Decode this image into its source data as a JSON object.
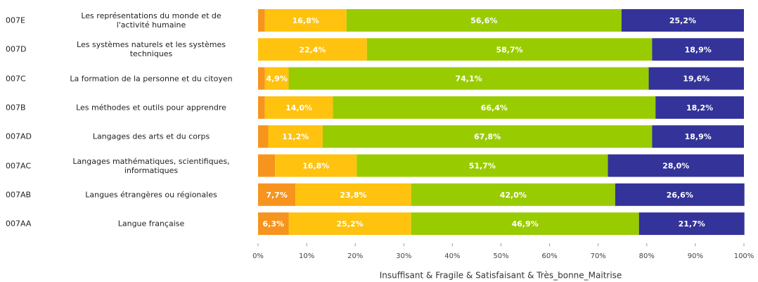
{
  "chart_data": {
    "type": "stacked_barh",
    "categories": [
      "007E",
      "007D",
      "007C",
      "007B",
      "007AD",
      "007AC",
      "007AB",
      "007AA"
    ],
    "category_labels": [
      "Les représentations du monde et de\nl'activité humaine",
      "Les systèmes naturels et les systèmes\ntechniques",
      "La formation de la personne et du citoyen",
      "Les méthodes et outils pour apprendre",
      "Langages des arts et du corps",
      "Langages mathématiques, scientifiques,\ninformatiques",
      "Langues étrangères ou régionales",
      "Langue française"
    ],
    "series": [
      {
        "color": "#f7941d",
        "values": [
          1.4,
          0,
          1.4,
          1.4,
          2.1,
          3.5,
          7.7,
          6.3
        ],
        "value_labels": [
          null,
          null,
          null,
          null,
          null,
          null,
          "7,7%",
          "6,3%"
        ]
      },
      {
        "color": "#ffc20e",
        "values": [
          16.8,
          22.4,
          4.9,
          14.0,
          11.2,
          16.8,
          23.8,
          25.2
        ],
        "value_labels": [
          "16,8%",
          "22,4%",
          "4,9%",
          "14,0%",
          "11,2%",
          "16,8%",
          "23,8%",
          "25,2%"
        ]
      },
      {
        "color": "#99cc00",
        "values": [
          56.6,
          58.7,
          74.1,
          66.4,
          67.8,
          51.7,
          42.0,
          46.9
        ],
        "value_labels": [
          "56,6%",
          "58,7%",
          "74,1%",
          "66,4%",
          "67,8%",
          "51,7%",
          "42,0%",
          "46,9%"
        ]
      },
      {
        "color": "#333399",
        "values": [
          25.2,
          18.9,
          19.6,
          18.2,
          18.9,
          28.0,
          26.6,
          21.7
        ],
        "value_labels": [
          "25,2%",
          "18,9%",
          "19,6%",
          "18,2%",
          "18,9%",
          "28,0%",
          "26,6%",
          "21,7%"
        ]
      }
    ],
    "xlim": [
      0,
      100
    ],
    "xticks": [
      {
        "value": 0,
        "label": "0%"
      },
      {
        "value": 10,
        "label": "10%"
      },
      {
        "value": 20,
        "label": "20%"
      },
      {
        "value": 30,
        "label": "30%"
      },
      {
        "value": 40,
        "label": "40%"
      },
      {
        "value": 50,
        "label": "50%"
      },
      {
        "value": 60,
        "label": "60%"
      },
      {
        "value": 70,
        "label": "70%"
      },
      {
        "value": 80,
        "label": "80%"
      },
      {
        "value": 90,
        "label": "90%"
      },
      {
        "value": 100,
        "label": "100%"
      }
    ],
    "xlabel": "Insuffisant & Fragile & Satisfaisant & Très_bonne_Maitrise"
  }
}
